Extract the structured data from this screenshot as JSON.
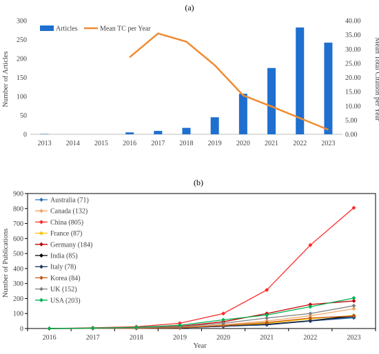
{
  "chart_data": [
    {
      "panel_label": "(a)",
      "type": "bar+line",
      "categories": [
        "2013",
        "2014",
        "2015",
        "2016",
        "2017",
        "2018",
        "2019",
        "2020",
        "2021",
        "2022",
        "2023"
      ],
      "bars": {
        "name": "Articles",
        "color": "#1f6fcf",
        "values": [
          1,
          0,
          0,
          5,
          9,
          17,
          45,
          107,
          175,
          282,
          242
        ]
      },
      "line": {
        "name": "Mean TC per Year",
        "color": "#f28a30",
        "categories": [
          "2016",
          "2017",
          "2018",
          "2019",
          "2020",
          "2021",
          "2022",
          "2023"
        ],
        "values": [
          27.1,
          35.5,
          32.6,
          24.3,
          13.7,
          9.8,
          5.7,
          1.6
        ]
      },
      "ylabel": "Number of Articles",
      "y2label": "Mean Total Citation per Year",
      "ylim": [
        0,
        300
      ],
      "y2lim": [
        0,
        40
      ],
      "yticks": [
        "0",
        "50",
        "100",
        "150",
        "200",
        "250",
        "300"
      ],
      "y2ticks": [
        "0.00",
        "5.00",
        "10.00",
        "15.00",
        "20.00",
        "25.00",
        "30.00",
        "35.00",
        "40.00"
      ],
      "legend_position": "top-left",
      "grid": false
    },
    {
      "panel_label": "(b)",
      "type": "line",
      "x": [
        "2016",
        "2017",
        "2018",
        "2019",
        "2020",
        "2021",
        "2022",
        "2023"
      ],
      "series": [
        {
          "name": "Australia (71)",
          "color": "#2e75b6",
          "marker": "diamond",
          "values": [
            0,
            1,
            2,
            6,
            15,
            25,
            50,
            71
          ]
        },
        {
          "name": "Canada (132)",
          "color": "#f4a460",
          "marker": "diamond",
          "values": [
            0,
            2,
            3,
            8,
            25,
            50,
            85,
            132
          ]
        },
        {
          "name": "China (805)",
          "color": "#ff2a2a",
          "marker": "diamond",
          "values": [
            0,
            5,
            12,
            35,
            100,
            257,
            556,
            805
          ]
        },
        {
          "name": "France (87)",
          "color": "#ffc000",
          "marker": "diamond",
          "values": [
            0,
            1,
            2,
            5,
            15,
            35,
            65,
            87
          ]
        },
        {
          "name": "Germany (184)",
          "color": "#c00000",
          "marker": "diamond",
          "values": [
            0,
            2,
            4,
            15,
            45,
            100,
            160,
            184
          ]
        },
        {
          "name": "India (85)",
          "color": "#000000",
          "marker": "diamond",
          "values": [
            0,
            1,
            2,
            5,
            15,
            28,
            52,
            85
          ]
        },
        {
          "name": "Italy (78)",
          "color": "#1f3864",
          "marker": "diamond",
          "values": [
            0,
            1,
            2,
            4,
            15,
            25,
            50,
            78
          ]
        },
        {
          "name": "Korea (84)",
          "color": "#c55a11",
          "marker": "diamond",
          "values": [
            0,
            1,
            2,
            5,
            20,
            40,
            70,
            84
          ]
        },
        {
          "name": "UK (152)",
          "color": "#7f7f7f",
          "marker": "diamond",
          "values": [
            0,
            2,
            5,
            12,
            35,
            70,
            100,
            152
          ]
        },
        {
          "name": "USA (203)",
          "color": "#00b050",
          "marker": "diamond",
          "values": [
            0,
            3,
            8,
            22,
            58,
            90,
            145,
            203
          ]
        }
      ],
      "xlabel": "Year",
      "ylabel": "Number of Publications",
      "ylim": [
        0,
        900
      ],
      "yticks": [
        "0",
        "100",
        "200",
        "300",
        "400",
        "500",
        "600",
        "700",
        "800",
        "900"
      ],
      "legend_position": "top-left",
      "grid": false
    }
  ]
}
